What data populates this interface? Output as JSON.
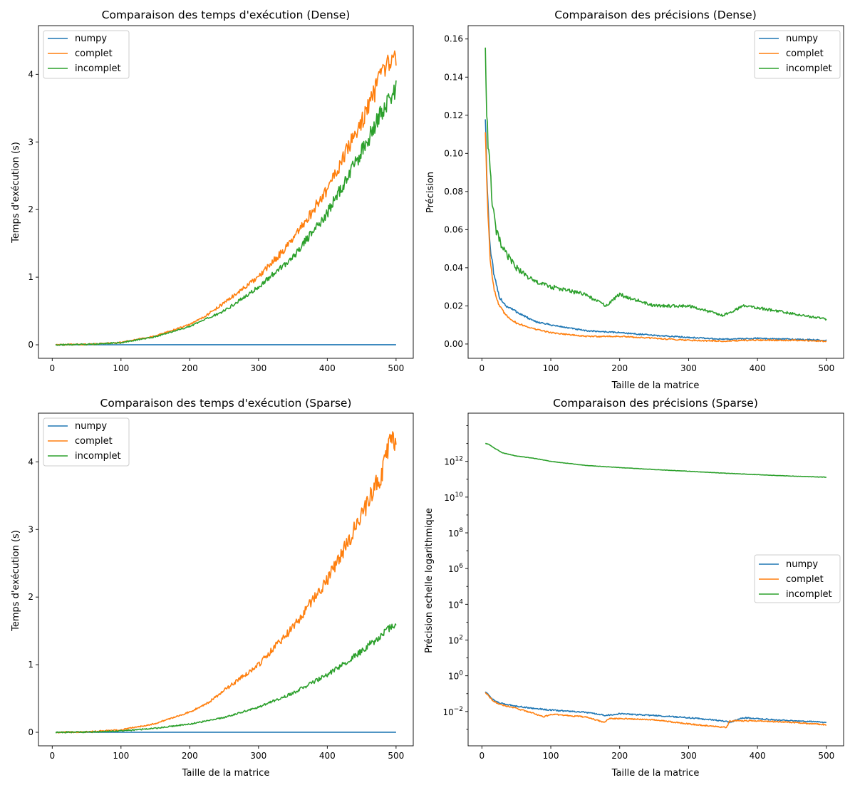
{
  "colors": {
    "numpy": "#1f77b4",
    "complet": "#ff7f0e",
    "incomplet": "#2ca02c"
  },
  "chart_data": [
    {
      "type": "line",
      "title": "Comparaison des temps d'exécution (Dense)",
      "xlabel": "",
      "ylabel": "Temps d'exécution (s)",
      "xlim": [
        -20,
        525
      ],
      "ylim": [
        -0.2,
        4.72
      ],
      "yscale": "linear",
      "xticks": [
        0,
        100,
        200,
        300,
        400,
        500
      ],
      "xtick_labels": [
        "0",
        "100",
        "200",
        "300",
        "400",
        "500"
      ],
      "yticks": [
        0,
        1,
        2,
        3,
        4
      ],
      "ytick_labels": [
        "0",
        "1",
        "2",
        "3",
        "4"
      ],
      "legend": {
        "position": "upper-left",
        "entries": [
          "numpy",
          "complet",
          "incomplet"
        ]
      },
      "series": [
        {
          "name": "numpy",
          "x": [
            5,
            500
          ],
          "y": [
            0.0,
            0.001
          ]
        },
        {
          "name": "complet",
          "x": [
            5,
            50,
            100,
            150,
            200,
            225,
            250,
            300,
            350,
            400,
            450,
            480,
            500
          ],
          "y": [
            0.0,
            0.006,
            0.035,
            0.13,
            0.3,
            0.44,
            0.62,
            1.0,
            1.55,
            2.3,
            3.3,
            4.0,
            4.3
          ]
        },
        {
          "name": "incomplet",
          "x": [
            5,
            50,
            100,
            150,
            200,
            250,
            300,
            350,
            400,
            450,
            480,
            500
          ],
          "y": [
            0.0,
            0.005,
            0.03,
            0.12,
            0.27,
            0.5,
            0.85,
            1.3,
            1.95,
            2.85,
            3.45,
            3.8
          ]
        }
      ]
    },
    {
      "type": "line",
      "title": "Comparaison des précisions (Dense)",
      "xlabel": "Taille de la matrice",
      "ylabel": "Précision",
      "xlim": [
        -20,
        525
      ],
      "ylim": [
        -0.0075,
        0.167
      ],
      "yscale": "linear",
      "xticks": [
        0,
        100,
        200,
        300,
        400,
        500
      ],
      "xtick_labels": [
        "0",
        "100",
        "200",
        "300",
        "400",
        "500"
      ],
      "yticks": [
        0,
        0.02,
        0.04,
        0.06,
        0.08,
        0.1,
        0.12,
        0.14,
        0.16
      ],
      "ytick_labels": [
        "0.00",
        "0.02",
        "0.04",
        "0.06",
        "0.08",
        "0.10",
        "0.12",
        "0.14",
        "0.16"
      ],
      "legend": {
        "position": "upper-right",
        "entries": [
          "numpy",
          "complet",
          "incomplet"
        ]
      },
      "series": [
        {
          "name": "numpy",
          "x": [
            5,
            8,
            12,
            18,
            25,
            35,
            50,
            75,
            100,
            150,
            200,
            250,
            300,
            350,
            400,
            450,
            500
          ],
          "y": [
            0.12,
            0.08,
            0.05,
            0.035,
            0.025,
            0.02,
            0.017,
            0.012,
            0.01,
            0.007,
            0.006,
            0.0045,
            0.0035,
            0.0025,
            0.003,
            0.0025,
            0.002
          ]
        },
        {
          "name": "complet",
          "x": [
            5,
            8,
            12,
            18,
            25,
            35,
            50,
            75,
            100,
            150,
            200,
            250,
            300,
            350,
            400,
            450,
            500
          ],
          "y": [
            0.113,
            0.075,
            0.045,
            0.028,
            0.02,
            0.015,
            0.011,
            0.008,
            0.006,
            0.004,
            0.004,
            0.003,
            0.002,
            0.0015,
            0.002,
            0.002,
            0.0015
          ]
        },
        {
          "name": "incomplet",
          "x": [
            5,
            7,
            10,
            15,
            20,
            30,
            50,
            75,
            100,
            150,
            180,
            200,
            250,
            300,
            350,
            380,
            400,
            450,
            500
          ],
          "y": [
            0.158,
            0.12,
            0.1,
            0.075,
            0.06,
            0.05,
            0.04,
            0.033,
            0.03,
            0.026,
            0.02,
            0.026,
            0.02,
            0.02,
            0.015,
            0.02,
            0.019,
            0.016,
            0.013
          ]
        }
      ]
    },
    {
      "type": "line",
      "title": "Comparaison des temps d'exécution (Sparse)",
      "xlabel": "Taille de la matrice",
      "ylabel": "Temps d'exécution (s)",
      "xlim": [
        -20,
        525
      ],
      "ylim": [
        -0.2,
        4.72
      ],
      "yscale": "linear",
      "xticks": [
        0,
        100,
        200,
        300,
        400,
        500
      ],
      "xtick_labels": [
        "0",
        "100",
        "200",
        "300",
        "400",
        "500"
      ],
      "yticks": [
        0,
        1,
        2,
        3,
        4
      ],
      "ytick_labels": [
        "0",
        "1",
        "2",
        "3",
        "4"
      ],
      "legend": {
        "position": "upper-left",
        "entries": [
          "numpy",
          "complet",
          "incomplet"
        ]
      },
      "series": [
        {
          "name": "numpy",
          "x": [
            5,
            500
          ],
          "y": [
            0.0,
            0.001
          ]
        },
        {
          "name": "complet",
          "x": [
            5,
            50,
            100,
            150,
            200,
            230,
            250,
            300,
            350,
            400,
            450,
            480,
            495,
            500
          ],
          "y": [
            0.0,
            0.006,
            0.035,
            0.13,
            0.3,
            0.46,
            0.62,
            1.0,
            1.55,
            2.25,
            3.2,
            3.85,
            4.45,
            4.25
          ]
        },
        {
          "name": "incomplet",
          "x": [
            5,
            50,
            100,
            150,
            200,
            250,
            300,
            350,
            400,
            450,
            480,
            500
          ],
          "y": [
            0.0,
            0.003,
            0.02,
            0.06,
            0.12,
            0.22,
            0.37,
            0.58,
            0.85,
            1.2,
            1.45,
            1.6
          ]
        }
      ]
    },
    {
      "type": "line",
      "title": "Comparaison des précisions (Sparse)",
      "xlabel": "Taille de la matrice",
      "ylabel": "Précision echelle logarithmique",
      "xlim": [
        -20,
        525
      ],
      "ylim": [
        0.00012,
        500000000000000
      ],
      "yscale": "log",
      "xticks": [
        0,
        100,
        200,
        300,
        400,
        500
      ],
      "xtick_labels": [
        "0",
        "100",
        "200",
        "300",
        "400",
        "500"
      ],
      "yticks": [
        0.01,
        1,
        100,
        10000,
        1000000,
        100000000,
        10000000000,
        1000000000000
      ],
      "ytick_labels": [
        {
          "base": "10",
          "exp": "−2"
        },
        {
          "base": "10",
          "exp": "0"
        },
        {
          "base": "10",
          "exp": "2"
        },
        {
          "base": "10",
          "exp": "4"
        },
        {
          "base": "10",
          "exp": "6"
        },
        {
          "base": "10",
          "exp": "8"
        },
        {
          "base": "10",
          "exp": "10"
        },
        {
          "base": "10",
          "exp": "12"
        }
      ],
      "legend": {
        "position": "center-right",
        "entries": [
          "numpy",
          "complet",
          "incomplet"
        ]
      },
      "series": [
        {
          "name": "numpy",
          "x": [
            5,
            15,
            25,
            50,
            75,
            100,
            150,
            180,
            200,
            250,
            300,
            350,
            360,
            380,
            400,
            450,
            500
          ],
          "y": [
            0.13,
            0.05,
            0.03,
            0.02,
            0.015,
            0.012,
            0.009,
            0.006,
            0.0075,
            0.006,
            0.0045,
            0.003,
            0.0025,
            0.0045,
            0.004,
            0.003,
            0.0025
          ]
        },
        {
          "name": "complet",
          "x": [
            5,
            15,
            25,
            50,
            75,
            90,
            100,
            150,
            178,
            185,
            200,
            250,
            300,
            350,
            355,
            360,
            380,
            400,
            450,
            500
          ],
          "y": [
            0.12,
            0.045,
            0.025,
            0.015,
            0.008,
            0.005,
            0.007,
            0.005,
            0.0025,
            0.004,
            0.004,
            0.0035,
            0.002,
            0.0013,
            0.0013,
            0.003,
            0.003,
            0.003,
            0.0025,
            0.0018
          ]
        },
        {
          "name": "incomplet",
          "x": [
            5,
            10,
            20,
            30,
            50,
            75,
            100,
            150,
            200,
            250,
            300,
            350,
            400,
            450,
            500
          ],
          "y": [
            10000000000000,
            9000000000000,
            5000000000000,
            3000000000000,
            2000000000000,
            1500000000000,
            1000000000000,
            600000000000,
            450000000000,
            350000000000,
            280000000000,
            220000000000,
            180000000000,
            150000000000,
            130000000000
          ]
        }
      ]
    }
  ]
}
